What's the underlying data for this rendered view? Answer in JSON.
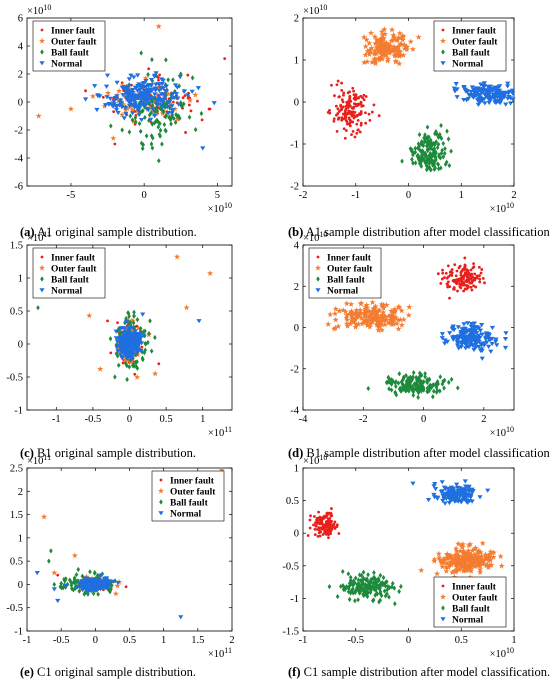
{
  "colors": {
    "inner": "#e8201c",
    "outer": "#f47c30",
    "ball": "#1e8a3c",
    "normal": "#1f6fe0"
  },
  "legend_labels": [
    "Inner fault",
    "Outer fault",
    "Ball fault",
    "Normal"
  ],
  "chart_data": [
    {
      "id": "a",
      "type": "scatter",
      "caption_letter": "(a)",
      "caption_text": " A1 original sample distribution.",
      "x_multiplier": "×10",
      "x_exp": "10",
      "y_multiplier": "×10",
      "y_exp": "10",
      "xlim": [
        -8,
        6
      ],
      "ylim": [
        -6,
        6
      ],
      "xticks": [
        -5,
        0,
        5
      ],
      "yticks": [
        -6,
        -4,
        -2,
        0,
        2,
        4,
        6
      ],
      "legend_position": "top-left",
      "series": [
        {
          "name": "Inner fault",
          "cluster": {
            "cx": 0.5,
            "cy": 0,
            "sx": 1.5,
            "sy": 0.8,
            "n": 90
          },
          "outliers": [
            [
              5.5,
              3.1
            ],
            [
              -4,
              0.8
            ],
            [
              4.5,
              -0.5
            ],
            [
              -2,
              -3
            ],
            [
              3,
              0.3
            ]
          ]
        },
        {
          "name": "Outer fault",
          "cluster": {
            "cx": 0,
            "cy": 0.2,
            "sx": 1.4,
            "sy": 0.8,
            "n": 60
          },
          "outliers": [
            [
              1,
              5.4
            ],
            [
              -7.2,
              -1
            ],
            [
              -2.7,
              -0.3
            ],
            [
              -3.5,
              0.4
            ],
            [
              3.5,
              0.5
            ],
            [
              -5,
              -0.5
            ]
          ]
        },
        {
          "name": "Ball fault",
          "cluster": {
            "cx": 1,
            "cy": -0.5,
            "sx": 1.2,
            "sy": 1.2,
            "n": 110
          },
          "outliers": [
            [
              -0.2,
              3.5
            ],
            [
              1,
              -4.2
            ],
            [
              2.5,
              2
            ],
            [
              -1.5,
              -2
            ],
            [
              0.5,
              -3
            ]
          ]
        },
        {
          "name": "Normal",
          "cluster": {
            "cx": -0.3,
            "cy": 0.3,
            "sx": 1.3,
            "sy": 0.7,
            "n": 200
          },
          "outliers": [
            [
              -2.5,
              1.9
            ],
            [
              -0.9,
              1.9
            ],
            [
              4,
              -3.3
            ],
            [
              -4,
              0.2
            ]
          ]
        }
      ]
    },
    {
      "id": "b",
      "type": "scatter",
      "caption_letter": "(b)",
      "caption_text": " A1 sample distribution after model classification.",
      "x_multiplier": "×10",
      "x_exp": "10",
      "y_multiplier": "×10",
      "y_exp": "10",
      "xlim": [
        -2,
        2
      ],
      "ylim": [
        -2,
        2
      ],
      "xticks": [
        -2,
        -1,
        0,
        1,
        2
      ],
      "yticks": [
        -2,
        -1,
        0,
        1,
        2
      ],
      "legend_position": "top-right",
      "series": [
        {
          "name": "Inner fault",
          "cluster": {
            "cx": -1.1,
            "cy": -0.2,
            "sx": 0.16,
            "sy": 0.28,
            "n": 150
          },
          "outliers": []
        },
        {
          "name": "Outer fault",
          "cluster": {
            "cx": -0.4,
            "cy": 1.3,
            "sx": 0.2,
            "sy": 0.17,
            "n": 150
          },
          "outliers": []
        },
        {
          "name": "Ball fault",
          "cluster": {
            "cx": 0.4,
            "cy": -1.2,
            "sx": 0.17,
            "sy": 0.24,
            "n": 150
          },
          "outliers": []
        },
        {
          "name": "Normal",
          "cluster": {
            "cx": 1.5,
            "cy": 0.2,
            "sx": 0.3,
            "sy": 0.12,
            "n": 150
          },
          "outliers": []
        }
      ]
    },
    {
      "id": "c",
      "type": "scatter",
      "caption_letter": "(c)",
      "caption_text": " B1 original sample distribution.",
      "x_multiplier": "×10",
      "x_exp": "11",
      "y_multiplier": "×10",
      "y_exp": "11",
      "xlim": [
        -1.4,
        1.4
      ],
      "ylim": [
        -1,
        1.5
      ],
      "xticks": [
        -1,
        -0.5,
        0,
        0.5,
        1
      ],
      "yticks": [
        -1,
        -0.5,
        0,
        0.5,
        1,
        1.5
      ],
      "legend_position": "top-left",
      "series": [
        {
          "name": "Inner fault",
          "cluster": {
            "cx": 0,
            "cy": 0,
            "sx": 0.08,
            "sy": 0.15,
            "n": 90
          },
          "outliers": [
            [
              -0.3,
              0.35
            ],
            [
              0.4,
              -0.3
            ]
          ]
        },
        {
          "name": "Outer fault",
          "cluster": {
            "cx": 0,
            "cy": 0,
            "sx": 0.08,
            "sy": 0.15,
            "n": 70
          },
          "outliers": [
            [
              0.65,
              1.32
            ],
            [
              1.1,
              1.07
            ],
            [
              0.78,
              0.55
            ],
            [
              -0.55,
              0.43
            ],
            [
              -0.4,
              -0.38
            ],
            [
              0.35,
              -0.45
            ]
          ]
        },
        {
          "name": "Ball fault",
          "cluster": {
            "cx": 0.02,
            "cy": 0,
            "sx": 0.1,
            "sy": 0.18,
            "n": 120
          },
          "outliers": [
            [
              -1.25,
              0.55
            ],
            [
              0.28,
              0.35
            ],
            [
              -0.2,
              -0.5
            ]
          ]
        },
        {
          "name": "Normal",
          "cluster": {
            "cx": 0,
            "cy": 0,
            "sx": 0.07,
            "sy": 0.12,
            "n": 220
          },
          "outliers": [
            [
              0.95,
              0.35
            ],
            [
              0.18,
              0.45
            ]
          ]
        }
      ]
    },
    {
      "id": "d",
      "type": "scatter",
      "caption_letter": "(d)",
      "caption_text": " B1 sample distribution after model classification.",
      "x_multiplier": "×10",
      "x_exp": "10",
      "y_multiplier": "×10",
      "y_exp": "10",
      "xlim": [
        -4,
        3
      ],
      "ylim": [
        -4,
        4
      ],
      "xticks": [
        -4,
        -2,
        0,
        2
      ],
      "yticks": [
        -4,
        -2,
        0,
        2,
        4
      ],
      "legend_position": "top-left",
      "series": [
        {
          "name": "Inner fault",
          "cluster": {
            "cx": 1.3,
            "cy": 2.4,
            "sx": 0.3,
            "sy": 0.35,
            "n": 150
          },
          "outliers": []
        },
        {
          "name": "Outer fault",
          "cluster": {
            "cx": -1.8,
            "cy": 0.5,
            "sx": 0.55,
            "sy": 0.3,
            "n": 180
          },
          "outliers": []
        },
        {
          "name": "Ball fault",
          "cluster": {
            "cx": -0.3,
            "cy": -2.8,
            "sx": 0.45,
            "sy": 0.25,
            "n": 160
          },
          "outliers": []
        },
        {
          "name": "Normal",
          "cluster": {
            "cx": 1.6,
            "cy": -0.5,
            "sx": 0.45,
            "sy": 0.3,
            "n": 160
          },
          "outliers": []
        }
      ]
    },
    {
      "id": "e",
      "type": "scatter",
      "caption_letter": "(e)",
      "caption_text": " C1 original sample distribution.",
      "x_multiplier": "×10",
      "x_exp": "11",
      "y_multiplier": "×10",
      "y_exp": "11",
      "xlim": [
        -1,
        2
      ],
      "ylim": [
        -1,
        2.5
      ],
      "xticks": [
        -1,
        -0.5,
        0,
        0.5,
        1,
        1.5,
        2
      ],
      "yticks": [
        -1,
        -0.5,
        0,
        0.5,
        1,
        1.5,
        2,
        2.5
      ],
      "legend_position": "top-right",
      "series": [
        {
          "name": "Inner fault",
          "cluster": {
            "cx": 0,
            "cy": 0,
            "sx": 0.12,
            "sy": 0.06,
            "n": 90
          },
          "outliers": [
            [
              0.45,
              -0.05
            ],
            [
              -0.55,
              0.2
            ]
          ]
        },
        {
          "name": "Outer fault",
          "cluster": {
            "cx": 0,
            "cy": 0,
            "sx": 0.12,
            "sy": 0.06,
            "n": 60
          },
          "outliers": [
            [
              1.85,
              2.45
            ],
            [
              -0.75,
              1.45
            ],
            [
              -0.3,
              0.62
            ],
            [
              -0.6,
              0.25
            ],
            [
              0.3,
              -0.2
            ]
          ]
        },
        {
          "name": "Ball fault",
          "cluster": {
            "cx": -0.1,
            "cy": 0,
            "sx": 0.18,
            "sy": 0.1,
            "n": 120
          },
          "outliers": [
            [
              -0.65,
              0.72
            ],
            [
              -0.68,
              0.5
            ],
            [
              -0.25,
              0.32
            ]
          ]
        },
        {
          "name": "Normal",
          "cluster": {
            "cx": 0,
            "cy": 0,
            "sx": 0.1,
            "sy": 0.06,
            "n": 200
          },
          "outliers": [
            [
              -0.85,
              0.25
            ],
            [
              -0.6,
              -0.1
            ],
            [
              1.25,
              -0.7
            ],
            [
              -0.55,
              -0.35
            ]
          ]
        }
      ]
    },
    {
      "id": "f",
      "type": "scatter",
      "caption_letter": "(f)",
      "caption_text": " C1 sample distribution after model classification.",
      "x_multiplier": "×10",
      "x_exp": "10",
      "y_multiplier": "×10",
      "y_exp": "10",
      "xlim": [
        -1,
        1
      ],
      "ylim": [
        -1.5,
        1
      ],
      "xticks": [
        -1,
        -0.5,
        0,
        0.5,
        1
      ],
      "yticks": [
        -1.5,
        -1,
        -0.5,
        0,
        0.5,
        1
      ],
      "legend_position": "bottom-right",
      "series": [
        {
          "name": "Inner fault",
          "cluster": {
            "cx": -0.8,
            "cy": 0.13,
            "sx": 0.06,
            "sy": 0.09,
            "n": 130
          },
          "outliers": []
        },
        {
          "name": "Outer fault",
          "cluster": {
            "cx": 0.55,
            "cy": -0.42,
            "sx": 0.13,
            "sy": 0.1,
            "n": 200
          },
          "outliers": []
        },
        {
          "name": "Ball fault",
          "cluster": {
            "cx": -0.4,
            "cy": -0.82,
            "sx": 0.12,
            "sy": 0.09,
            "n": 170
          },
          "outliers": []
        },
        {
          "name": "Normal",
          "cluster": {
            "cx": 0.45,
            "cy": 0.6,
            "sx": 0.1,
            "sy": 0.07,
            "n": 140
          },
          "outliers": []
        }
      ]
    }
  ]
}
